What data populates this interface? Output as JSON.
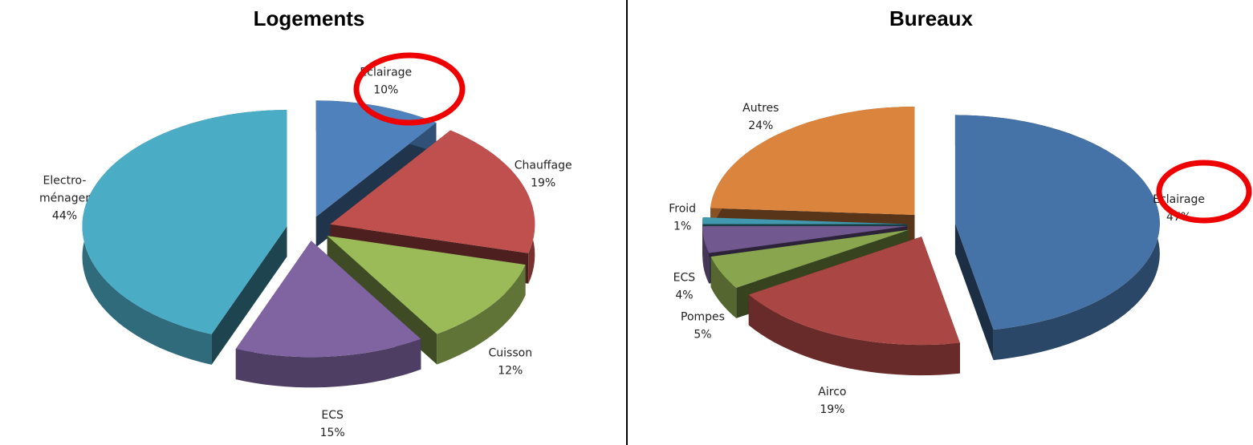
{
  "chart_data": [
    {
      "type": "pie3d",
      "title": "Logements",
      "categories": [
        "Eclairage",
        "Chauffage",
        "Cuisson",
        "ECS",
        "Electro-\nménager"
      ],
      "values": [
        10,
        19,
        12,
        15,
        44
      ],
      "value_labels": [
        "10%",
        "19%",
        "12%",
        "15%",
        "44%"
      ],
      "colors": [
        "#4f81bd",
        "#c0504d",
        "#9bbb59",
        "#8064a2",
        "#4bacc6"
      ]
    },
    {
      "type": "pie3d",
      "title": "Bureaux",
      "categories": [
        "Eclairage",
        "Airco",
        "Pompes",
        "ECS",
        "Froid",
        "Autres"
      ],
      "values": [
        47,
        19,
        5,
        4,
        1,
        24
      ],
      "value_labels": [
        "47%",
        "19%",
        "5%",
        "4%",
        "1%",
        "24%"
      ],
      "colors": [
        "#4572a7",
        "#aa4643",
        "#89a54e",
        "#71588f",
        "#4198af",
        "#db843d"
      ]
    }
  ]
}
